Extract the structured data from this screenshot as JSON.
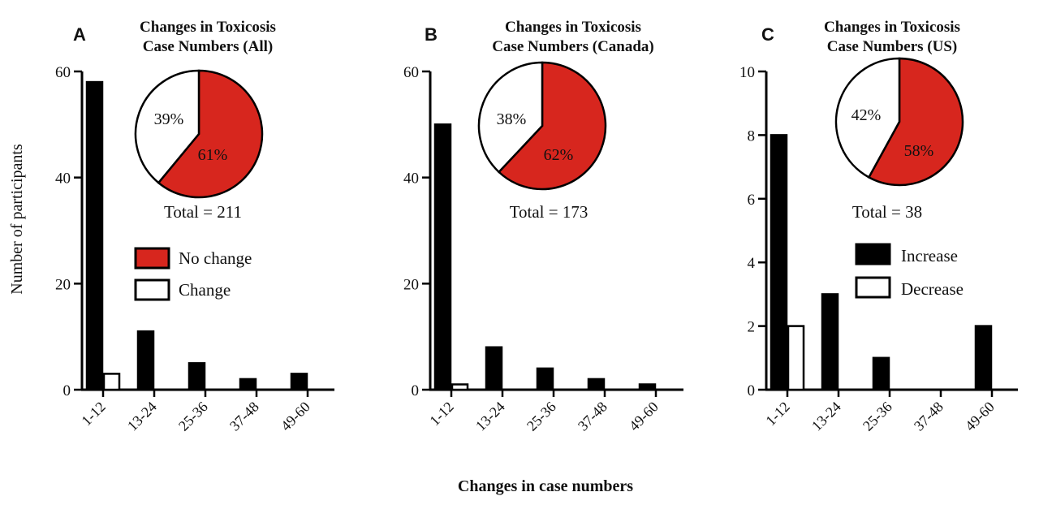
{
  "ylabel": "Number of participants",
  "xlabel": "Changes in case numbers",
  "colors": {
    "no_change": "#d7261e",
    "change": "#ffffff",
    "increase": "#000000",
    "decrease": "#ffffff",
    "axis": "#000000"
  },
  "chart_data": [
    {
      "type": "bar",
      "letter": "A",
      "title_lines": [
        "Changes in Toxicosis",
        "Case Numbers (All)"
      ],
      "categories": [
        "1-12",
        "13-24",
        "25-36",
        "37-48",
        "49-60"
      ],
      "series": [
        {
          "values": [
            58,
            11,
            5,
            2,
            3
          ],
          "fill": "#000000"
        },
        {
          "values": [
            3,
            0,
            0,
            0,
            0
          ],
          "fill": "#ffffff"
        }
      ],
      "ylim": [
        0,
        60
      ],
      "yticks": [
        0,
        20,
        40,
        60
      ],
      "pie": {
        "slices": [
          {
            "label": "61%",
            "value": 61,
            "color": "#d7261e"
          },
          {
            "label": "39%",
            "value": 39,
            "color": "#ffffff"
          }
        ]
      },
      "total": "Total = 211",
      "legend": [
        {
          "label": "No change",
          "color": "#d7261e"
        },
        {
          "label": "Change",
          "color": "#ffffff"
        }
      ]
    },
    {
      "type": "bar",
      "letter": "B",
      "title_lines": [
        "Changes in Toxicosis",
        "Case Numbers (Canada)"
      ],
      "categories": [
        "1-12",
        "13-24",
        "25-36",
        "37-48",
        "49-60"
      ],
      "series": [
        {
          "values": [
            50,
            8,
            4,
            2,
            1
          ],
          "fill": "#000000"
        },
        {
          "values": [
            1,
            0,
            0,
            0,
            0
          ],
          "fill": "#ffffff"
        }
      ],
      "ylim": [
        0,
        60
      ],
      "yticks": [
        0,
        20,
        40,
        60
      ],
      "pie": {
        "slices": [
          {
            "label": "62%",
            "value": 62,
            "color": "#d7261e"
          },
          {
            "label": "38%",
            "value": 38,
            "color": "#ffffff"
          }
        ]
      },
      "total": "Total = 173",
      "legend": []
    },
    {
      "type": "bar",
      "letter": "C",
      "title_lines": [
        "Changes in Toxicosis",
        "Case Numbers (US)"
      ],
      "categories": [
        "1-12",
        "13-24",
        "25-36",
        "37-48",
        "49-60"
      ],
      "series": [
        {
          "name": "Increase",
          "values": [
            8,
            3,
            1,
            0,
            2
          ],
          "fill": "#000000"
        },
        {
          "name": "Decrease",
          "values": [
            2,
            0,
            0,
            0,
            0
          ],
          "fill": "#ffffff"
        }
      ],
      "ylim": [
        0,
        10
      ],
      "yticks": [
        0,
        2,
        4,
        6,
        8,
        10
      ],
      "pie": {
        "slices": [
          {
            "label": "58%",
            "value": 58,
            "color": "#d7261e"
          },
          {
            "label": "42%",
            "value": 42,
            "color": "#ffffff"
          }
        ]
      },
      "total": "Total = 38",
      "legend": [
        {
          "label": "Increase",
          "color": "#000000"
        },
        {
          "label": "Decrease",
          "color": "#ffffff"
        }
      ]
    }
  ]
}
